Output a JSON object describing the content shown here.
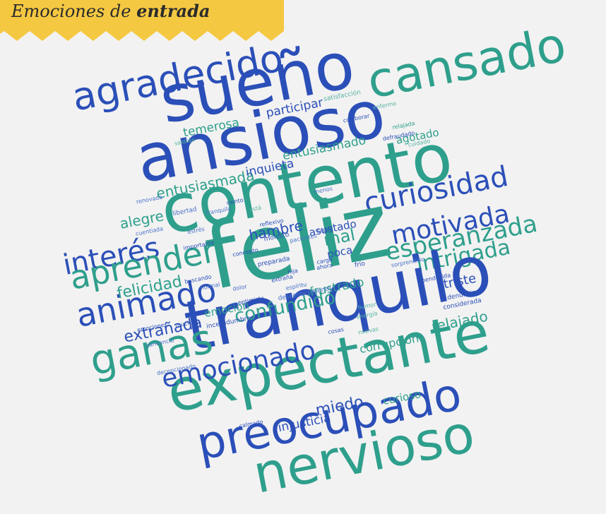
{
  "header": {
    "title": "Emociones de",
    "title_emphasis": "entrada"
  },
  "words": [
    "agradecido",
    "sueño",
    "cansado",
    "ansioso",
    "contento",
    "curiosidad",
    "feliz",
    "motivada",
    "esperanzada",
    "interés",
    "aprender",
    "animado",
    "intrigada",
    "tranquilo",
    "ganas",
    "expectante",
    "emocionado",
    "preocupado",
    "nervioso",
    "confundido",
    "felicidad",
    "extrañada",
    "hambre",
    "mal",
    "asustado",
    "poca",
    "frustrado",
    "relajado",
    "triste",
    "corrupción",
    "miedo",
    "injusticia",
    "curioso",
    "entusiasmada",
    "inquieta",
    "alegre",
    "entusiasmado",
    "temerosa",
    "participar",
    "agotado",
    "emoción",
    "satisfacción",
    "colaborar",
    "defraudado",
    "relajada",
    "saldrán",
    "enfermo",
    "cuidado",
    "siento",
    "menos",
    "libertad",
    "tranquila",
    "está",
    "reflexivo",
    "molesto",
    "preparada",
    "desconocimiento",
    "bendecida",
    "denunciar",
    "considerada",
    "buscando",
    "normal",
    "optimista",
    "incertidumbre",
    "mucha",
    "emociones",
    "cosas",
    "calmado",
    "decepcionado",
    "humor",
    "energía",
    "nuevas",
    "sorprendido",
    "frío",
    "capaz",
    "carga",
    "ahora",
    "pacientes",
    "cansancio",
    "renovada",
    "cuentiada",
    "importante",
    "concepto",
    "estrés",
    "dolor",
    "hija",
    "espíritu",
    "extraña"
  ]
}
